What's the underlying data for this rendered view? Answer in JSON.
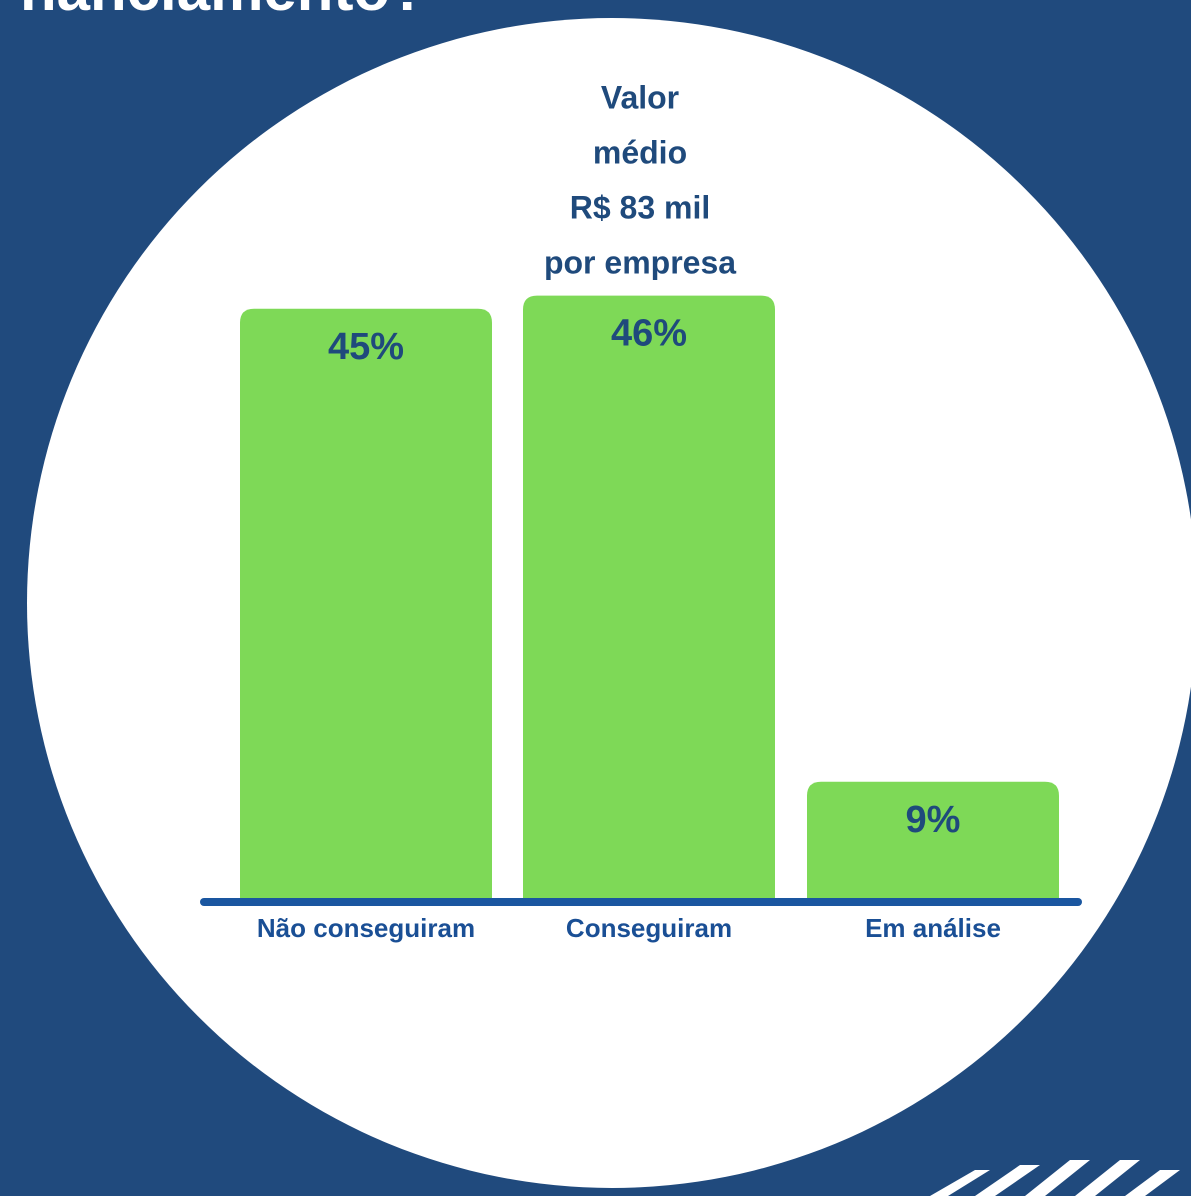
{
  "chart_data": {
    "type": "bar",
    "title": "nanciamento?",
    "annotation": [
      "Valor",
      "médio",
      "R$ 83 mil",
      "por empresa"
    ],
    "categories": [
      "Não conseguiram",
      "Conseguiram",
      "Em análise"
    ],
    "values": [
      45,
      46,
      9
    ],
    "value_labels": [
      "45%",
      "46%",
      "9%"
    ],
    "color": "#7ed957",
    "ylim": [
      0,
      68.5
    ]
  }
}
